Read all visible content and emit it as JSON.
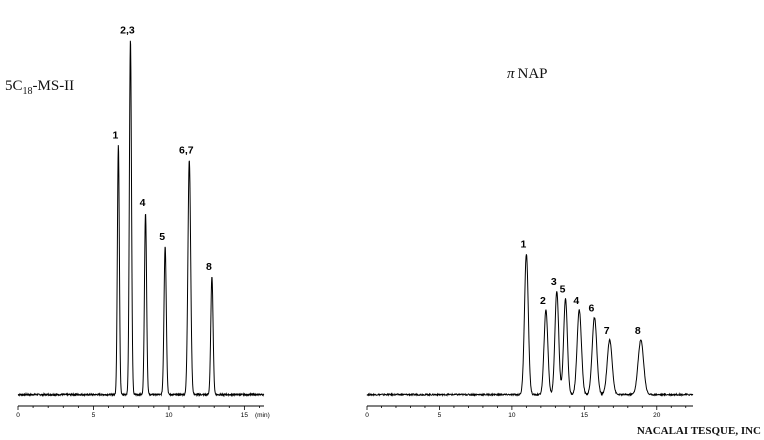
{
  "chart_data": [
    {
      "type": "line",
      "column_name": {
        "prefix": "5C",
        "subscript": "18",
        "suffix": "-MS-II"
      },
      "x_unit": "(min)",
      "xlim": [
        0,
        16.3
      ],
      "x_ticks": [
        0,
        5,
        10,
        15
      ],
      "x_tick_labels": [
        "0",
        "5",
        "10",
        "15"
      ],
      "ylim": [
        0,
        1.0
      ],
      "baseline": 0.025,
      "peaks": [
        {
          "label": "1",
          "rt": 6.65,
          "height": 0.69,
          "width": 0.065
        },
        {
          "label": "2,3",
          "rt": 7.45,
          "height": 0.97,
          "width": 0.07
        },
        {
          "label": "4",
          "rt": 8.45,
          "height": 0.51,
          "width": 0.07
        },
        {
          "label": "5",
          "rt": 9.75,
          "height": 0.42,
          "width": 0.075
        },
        {
          "label": "6,7",
          "rt": 11.35,
          "height": 0.65,
          "width": 0.09
        },
        {
          "label": "8",
          "rt": 12.85,
          "height": 0.34,
          "width": 0.075
        }
      ]
    },
    {
      "type": "line",
      "column_name": {
        "prefix": "π",
        "suffix": "NAP"
      },
      "x_unit": "",
      "xlim": [
        0,
        22.5
      ],
      "x_ticks": [
        0,
        5,
        10,
        15,
        20
      ],
      "x_tick_labels": [
        "0",
        "5",
        "10",
        "15",
        "20"
      ],
      "ylim": [
        0,
        1.0
      ],
      "baseline": 0.025,
      "peaks": [
        {
          "label": "1",
          "rt": 11.0,
          "height": 0.4,
          "width": 0.13
        },
        {
          "label": "2",
          "rt": 12.35,
          "height": 0.25,
          "width": 0.13
        },
        {
          "label": "3",
          "rt": 13.1,
          "height": 0.3,
          "width": 0.13
        },
        {
          "label": "5",
          "rt": 13.7,
          "height": 0.28,
          "width": 0.13
        },
        {
          "label": "4",
          "rt": 14.65,
          "height": 0.25,
          "width": 0.15
        },
        {
          "label": "6",
          "rt": 15.7,
          "height": 0.23,
          "width": 0.16
        },
        {
          "label": "7",
          "rt": 16.75,
          "height": 0.17,
          "width": 0.17
        },
        {
          "label": "8",
          "rt": 18.9,
          "height": 0.17,
          "width": 0.19
        }
      ]
    }
  ],
  "credit": "NACALAI TESQUE, INC"
}
